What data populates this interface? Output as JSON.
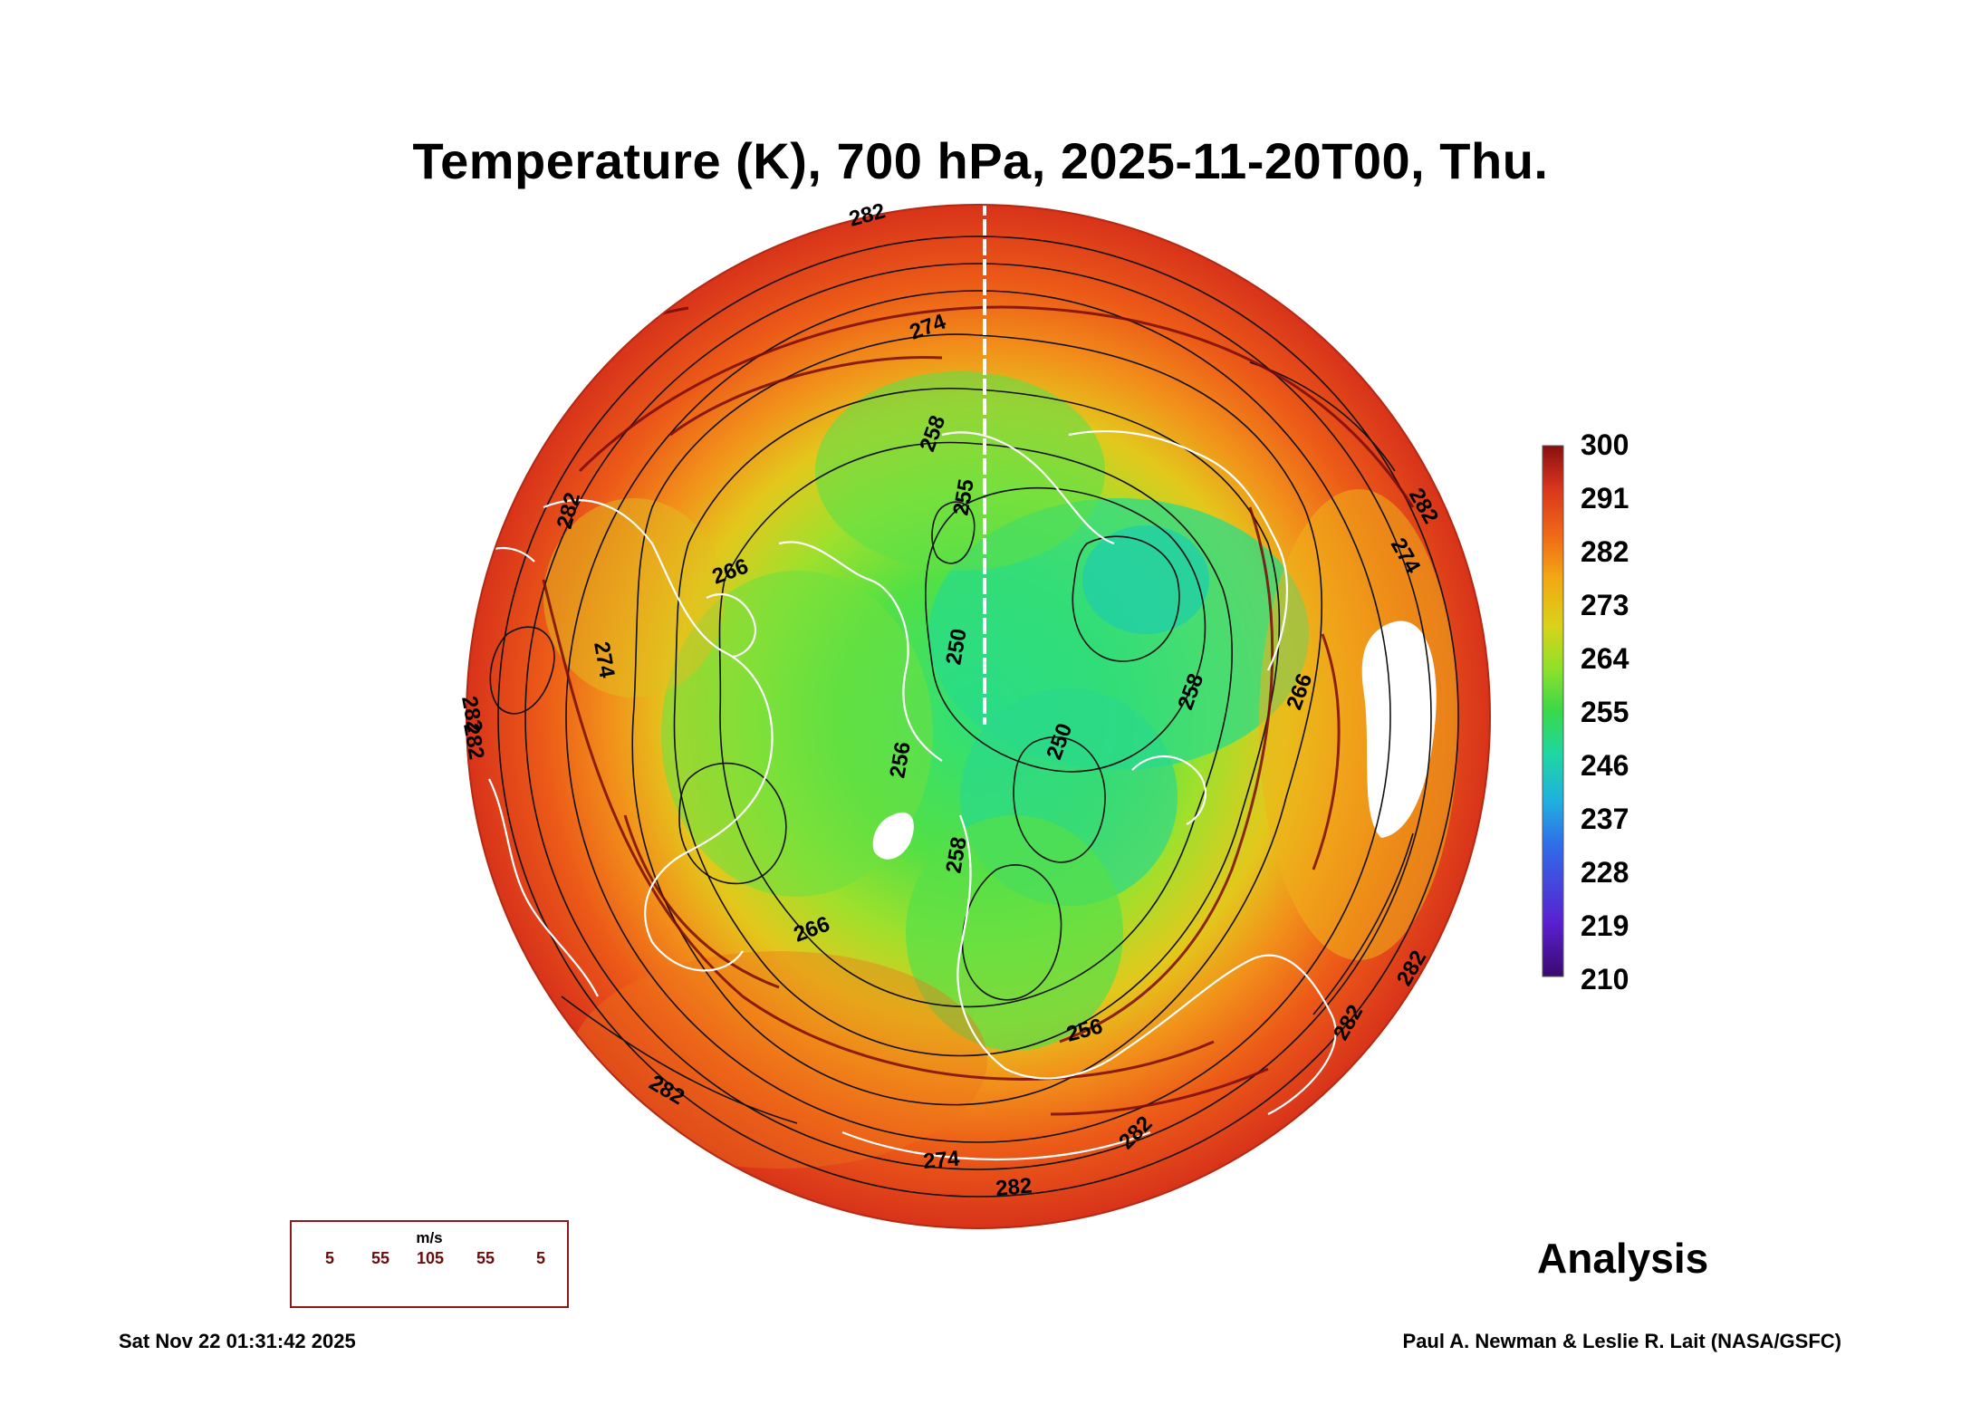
{
  "title": "Temperature (K), 700 hPa, 2025-11-20T00, Thu.",
  "colorbar": {
    "labels": [
      "300",
      "291",
      "282",
      "273",
      "264",
      "255",
      "246",
      "237",
      "228",
      "219",
      "210"
    ],
    "min": 210,
    "max": 300,
    "colors": [
      "#3a0a6e",
      "#5a1fd0",
      "#2f6ee8",
      "#1fb0e0",
      "#1fd7a0",
      "#39d84a",
      "#8fe02a",
      "#d9d21a",
      "#f2a814",
      "#f06a16",
      "#d8351e",
      "#8a0f10"
    ]
  },
  "map": {
    "projection": "polar stereographic (North Pole)",
    "land_outline_color": "#ffffff",
    "contour_color": "#111111",
    "streamline_color": "#7a0a0a",
    "contour_labels": [
      {
        "text": "282"
      },
      {
        "text": "274"
      },
      {
        "text": "258"
      },
      {
        "text": "255"
      },
      {
        "text": "266"
      },
      {
        "text": "282"
      },
      {
        "text": "274"
      },
      {
        "text": "282"
      },
      {
        "text": "250"
      },
      {
        "text": "256"
      },
      {
        "text": "250"
      },
      {
        "text": "258"
      },
      {
        "text": "266"
      },
      {
        "text": "258"
      },
      {
        "text": "266"
      },
      {
        "text": "256"
      },
      {
        "text": "282"
      },
      {
        "text": "274"
      },
      {
        "text": "282"
      },
      {
        "text": "282"
      },
      {
        "text": "274"
      },
      {
        "text": "282"
      },
      {
        "text": "282"
      },
      {
        "text": "282"
      },
      {
        "text": "282"
      }
    ]
  },
  "wind_legend": {
    "unit": "m/s",
    "values": [
      "5",
      "55",
      "105",
      "55",
      "5"
    ]
  },
  "analysis_label": "Analysis",
  "timestamp": "Sat Nov 22 01:31:42 2025",
  "credit": "Paul A. Newman & Leslie R. Lait (NASA/GSFC)"
}
